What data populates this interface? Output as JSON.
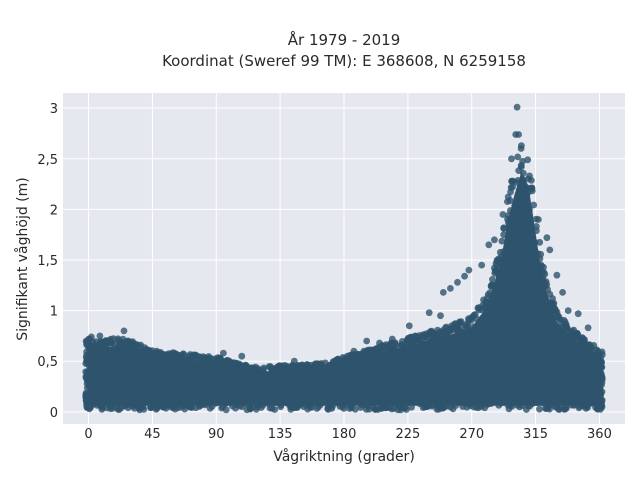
{
  "chart_data": {
    "type": "scatter",
    "title_lines": [
      "År 1979 - 2019",
      "Koordinat (Sweref 99 TM): E 368608, N 6259158"
    ],
    "xlabel": "Vågriktning (grader)",
    "ylabel": "Signifikant våghöjd (m)",
    "xlim": [
      -18,
      378
    ],
    "ylim": [
      -0.12,
      3.15
    ],
    "xticks": [
      0,
      45,
      90,
      135,
      180,
      225,
      270,
      315,
      360
    ],
    "xtick_labels": [
      "0",
      "45",
      "90",
      "135",
      "180",
      "225",
      "270",
      "315",
      "360"
    ],
    "yticks": [
      0,
      0.5,
      1,
      1.5,
      2,
      2.5,
      3
    ],
    "ytick_labels": [
      "0",
      "0,5",
      "1",
      "1,5",
      "2",
      "2,5",
      "3"
    ],
    "grid": true,
    "point_color": "#2e546d",
    "plot_background": "#e6e8f0",
    "envelope": {
      "direction": [
        0,
        10,
        20,
        30,
        45,
        60,
        75,
        90,
        105,
        120,
        135,
        150,
        165,
        180,
        195,
        210,
        225,
        240,
        255,
        270,
        280,
        290,
        295,
        300,
        305,
        310,
        315,
        320,
        330,
        340,
        350,
        360
      ],
      "upper_height": [
        0.72,
        0.68,
        0.7,
        0.68,
        0.58,
        0.56,
        0.54,
        0.52,
        0.46,
        0.42,
        0.44,
        0.45,
        0.46,
        0.52,
        0.58,
        0.64,
        0.7,
        0.76,
        0.82,
        0.9,
        1.1,
        1.55,
        2.0,
        2.3,
        2.55,
        2.4,
        1.9,
        1.4,
        0.95,
        0.8,
        0.68,
        0.6
      ],
      "lower_height": 0.02
    },
    "outliers": [
      {
        "x": 302,
        "y": 3.01
      },
      {
        "x": 301,
        "y": 2.74
      },
      {
        "x": 303,
        "y": 2.74
      },
      {
        "x": 305,
        "y": 2.63
      },
      {
        "x": 298,
        "y": 2.5
      },
      {
        "x": 305,
        "y": 2.42
      },
      {
        "x": 310,
        "y": 2.3
      },
      {
        "x": 312,
        "y": 2.2
      },
      {
        "x": 317,
        "y": 1.9
      },
      {
        "x": 323,
        "y": 1.72
      },
      {
        "x": 282,
        "y": 1.65
      },
      {
        "x": 286,
        "y": 1.7
      },
      {
        "x": 292,
        "y": 1.95
      },
      {
        "x": 288,
        "y": 1.5
      },
      {
        "x": 277,
        "y": 1.45
      },
      {
        "x": 268,
        "y": 1.4
      },
      {
        "x": 265,
        "y": 1.34
      },
      {
        "x": 255,
        "y": 1.22
      },
      {
        "x": 260,
        "y": 1.28
      },
      {
        "x": 250,
        "y": 1.18
      },
      {
        "x": 325,
        "y": 1.6
      },
      {
        "x": 330,
        "y": 1.35
      },
      {
        "x": 334,
        "y": 1.18
      },
      {
        "x": 338,
        "y": 1.0
      },
      {
        "x": 345,
        "y": 0.97
      },
      {
        "x": 352,
        "y": 0.83
      },
      {
        "x": 240,
        "y": 0.98
      },
      {
        "x": 226,
        "y": 0.85
      },
      {
        "x": 214,
        "y": 0.72
      },
      {
        "x": 205,
        "y": 0.68
      },
      {
        "x": 196,
        "y": 0.7
      },
      {
        "x": 187,
        "y": 0.6
      },
      {
        "x": 175,
        "y": 0.5
      },
      {
        "x": 145,
        "y": 0.5
      },
      {
        "x": 108,
        "y": 0.55
      },
      {
        "x": 95,
        "y": 0.58
      },
      {
        "x": 66,
        "y": 0.56
      },
      {
        "x": 48,
        "y": 0.6
      },
      {
        "x": 25,
        "y": 0.8
      },
      {
        "x": 2,
        "y": 0.74
      },
      {
        "x": 8,
        "y": 0.75
      },
      {
        "x": 15,
        "y": 0.7
      },
      {
        "x": 270,
        "y": 0.93
      },
      {
        "x": 248,
        "y": 0.95
      }
    ]
  }
}
